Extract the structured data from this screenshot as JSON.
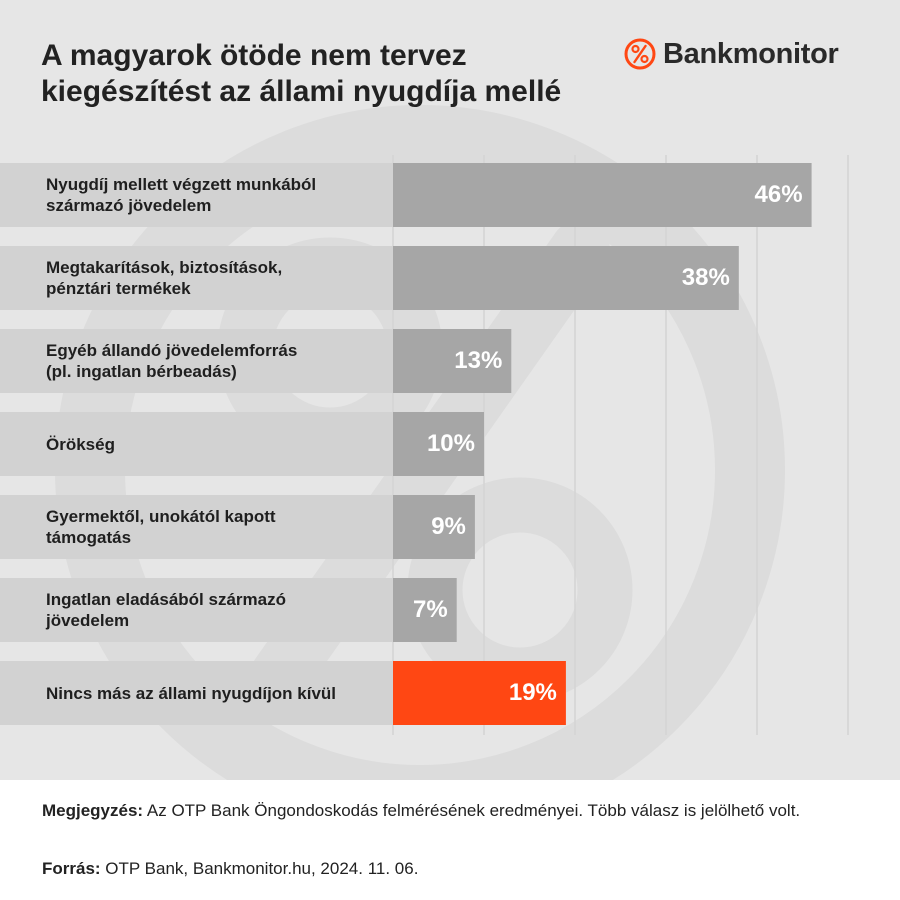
{
  "title": {
    "line1": "A magyarok ötöde nem tervez",
    "line2": "kiegészítést az állami nyugdíja mellé"
  },
  "logo": {
    "name": "Bankmonitor",
    "icon": "percent-circle-icon",
    "color": "#ff4713"
  },
  "chart_data": {
    "type": "bar",
    "orientation": "horizontal",
    "categories": [
      "Nyugdíj mellett végzett munkából\nszármazó jövedelem",
      "Megtakarítások, biztosítások,\npénztári termékek",
      "Egyéb állandó jövedelemforrás\n(pl. ingatlan bérbeadás)",
      "Örökség",
      "Gyermektől, unokától kapott\ntámogatás",
      "Ingatlan eladásából származó\njövedelem",
      "Nincs más az állami nyugdíjon kívül"
    ],
    "values": [
      46,
      38,
      13,
      10,
      9,
      7,
      19
    ],
    "value_labels": [
      "46%",
      "38%",
      "13%",
      "10%",
      "9%",
      "7%",
      "19%"
    ],
    "unit": "%",
    "xlim": [
      0,
      50
    ],
    "grid": true,
    "legend": "none",
    "colors": {
      "bar": "#a6a6a6",
      "highlight": "#ff4713",
      "label_band": "#d2d2d2",
      "background": "#e6e6e6",
      "grid": "#d4d4d4"
    },
    "highlight_index": 6
  },
  "footer": {
    "note_label": "Megjegyzés:",
    "note_text": " Az OTP Bank Öngondoskodás felmérésének eredményei. Több válasz is jelölhető volt.",
    "source_label": "Forrás:",
    "source_text": " OTP Bank, Bankmonitor.hu, 2024. 11. 06."
  }
}
